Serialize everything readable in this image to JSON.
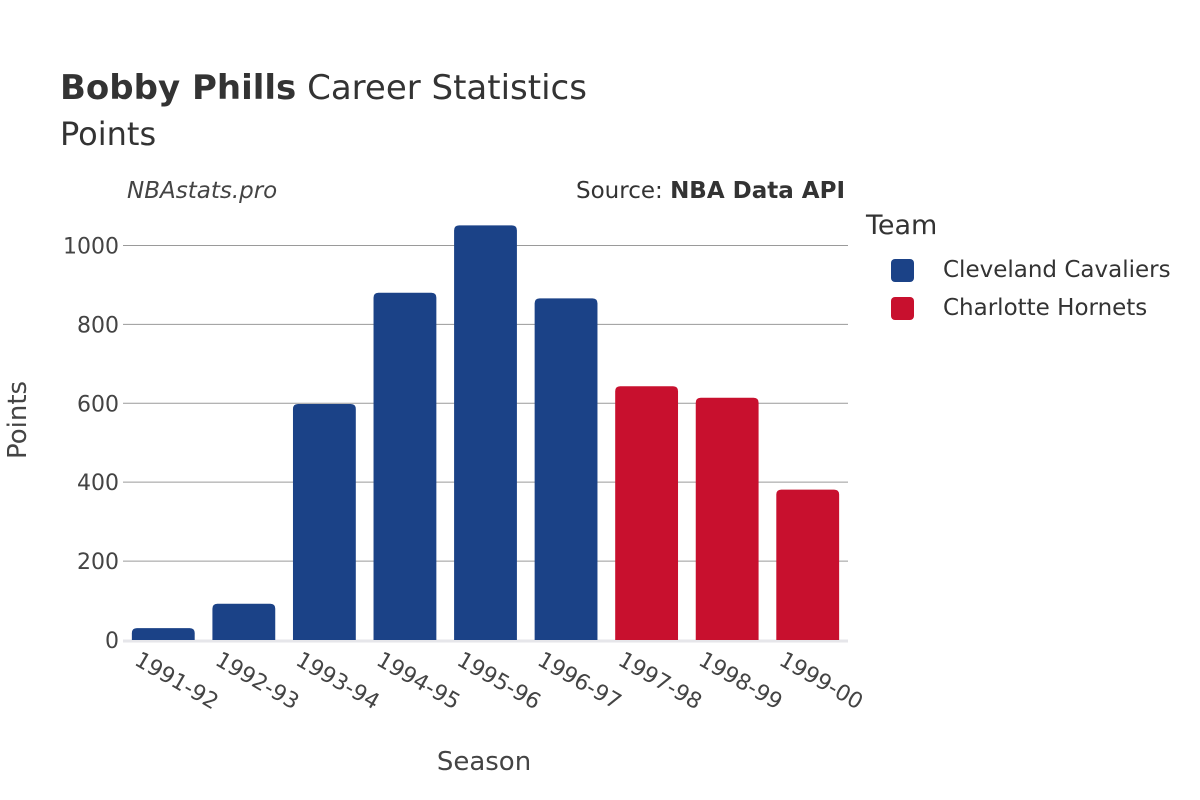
{
  "header": {
    "player": "Bobby Phills",
    "title_rest": "Career Statistics",
    "subtitle": "Points"
  },
  "watermark": "NBAstats.pro",
  "source": {
    "prefix": "Source: ",
    "name": "NBA Data API"
  },
  "legend": {
    "title": "Team",
    "items": [
      {
        "label": "Cleveland Cavaliers",
        "color": "#1b4287"
      },
      {
        "label": "Charlotte Hornets",
        "color": "#c8102e"
      }
    ]
  },
  "chart_data": {
    "type": "bar",
    "xlabel": "Season",
    "ylabel": "Points",
    "ylim": [
      0,
      1100
    ],
    "yticks": [
      0,
      200,
      400,
      600,
      800,
      1000
    ],
    "grid": true,
    "legend_position": "right",
    "categories": [
      "1991-92",
      "1992-93",
      "1993-94",
      "1994-95",
      "1995-96",
      "1996-97",
      "1997-98",
      "1998-99",
      "1999-00"
    ],
    "values": [
      30,
      92,
      598,
      880,
      1051,
      866,
      643,
      614,
      381
    ],
    "teams": [
      "Cleveland Cavaliers",
      "Cleveland Cavaliers",
      "Cleveland Cavaliers",
      "Cleveland Cavaliers",
      "Cleveland Cavaliers",
      "Cleveland Cavaliers",
      "Charlotte Hornets",
      "Charlotte Hornets",
      "Charlotte Hornets"
    ]
  }
}
